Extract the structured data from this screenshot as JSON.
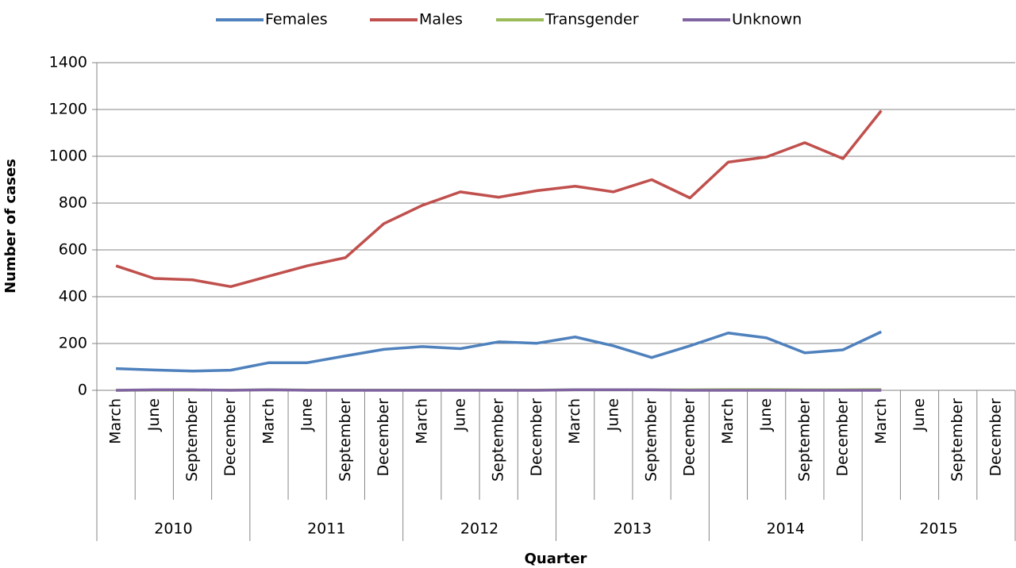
{
  "chart_data": {
    "type": "line",
    "y_label": "Number of cases",
    "x_label": "Quarter",
    "categories": [
      "March",
      "June",
      "September",
      "December",
      "March",
      "June",
      "September",
      "December",
      "March",
      "June",
      "September",
      "December",
      "March",
      "June",
      "September",
      "December",
      "March",
      "June",
      "September",
      "December",
      "March",
      "June",
      "September",
      "December"
    ],
    "years": [
      "2010",
      "2011",
      "2012",
      "2013",
      "2014",
      "2015"
    ],
    "series": [
      {
        "name": "Females",
        "color": "#4f81bd",
        "values": [
          93,
          87,
          82,
          86,
          118,
          118,
          147,
          175,
          187,
          178,
          207,
          201,
          228,
          190,
          140,
          190,
          245,
          224,
          160,
          173,
          250,
          null,
          null,
          null
        ]
      },
      {
        "name": "Males",
        "color": "#c0504d",
        "values": [
          532,
          478,
          472,
          443,
          488,
          532,
          567,
          712,
          790,
          848,
          825,
          853,
          872,
          848,
          900,
          822,
          975,
          997,
          1058,
          990,
          1195,
          null,
          null,
          null
        ]
      },
      {
        "name": "Transgender",
        "color": "#9bbb59",
        "values": [
          0,
          1,
          1,
          1,
          2,
          1,
          1,
          1,
          1,
          1,
          1,
          1,
          2,
          2,
          2,
          2,
          3,
          3,
          2,
          2,
          3,
          null,
          null,
          null
        ]
      },
      {
        "name": "Unknown",
        "color": "#8064a2",
        "values": [
          0,
          2,
          2,
          0,
          2,
          0,
          0,
          0,
          0,
          0,
          0,
          0,
          2,
          2,
          2,
          0,
          0,
          0,
          0,
          0,
          0,
          null,
          null,
          null
        ]
      }
    ],
    "ylim": [
      0,
      1400
    ],
    "yticks": [
      0,
      200,
      400,
      600,
      800,
      1000,
      1200,
      1400
    ],
    "grid": true,
    "legend": "top"
  }
}
